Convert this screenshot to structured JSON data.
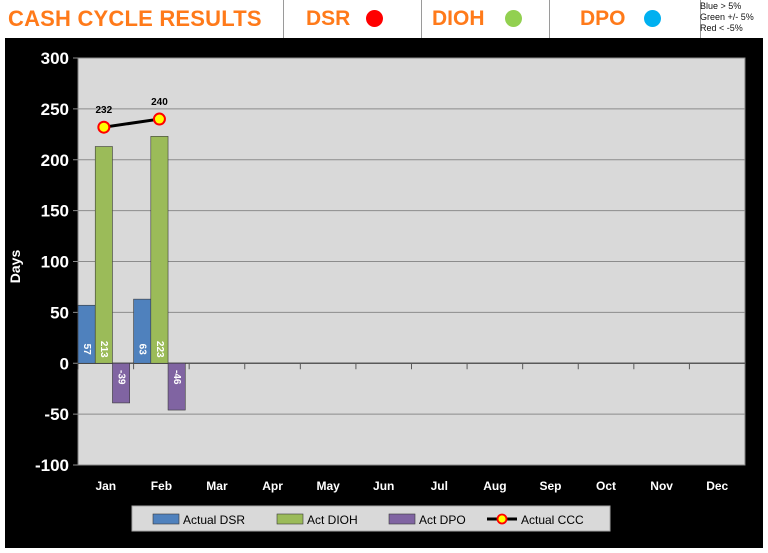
{
  "header": {
    "title": "CASH CYCLE RESULTS",
    "indicators": [
      {
        "label": "DSR",
        "color": "#ff0000"
      },
      {
        "label": "DIOH",
        "color": "#92d050"
      },
      {
        "label": "DPO",
        "color": "#00b0f0"
      }
    ],
    "notes": [
      "Blue > 5%",
      "Green +/- 5%",
      "Red < -5%"
    ]
  },
  "colors": {
    "dsr": "#4f81bd",
    "dioh": "#9bbb59",
    "dpo": "#8064a2",
    "ccc_line": "#000000",
    "ccc_marker_fill": "#ffff00",
    "ccc_marker_edge": "#ff0000",
    "plot_bg": "#d9d9d9"
  },
  "chart_data": {
    "type": "bar",
    "title": "",
    "xlabel": "",
    "ylabel": "Days",
    "ylim": [
      -100,
      300
    ],
    "yticks": [
      300,
      250,
      200,
      150,
      100,
      50,
      0,
      -50,
      -100
    ],
    "grid": true,
    "legend_position": "bottom",
    "categories": [
      "Jan",
      "Feb",
      "Mar",
      "Apr",
      "May",
      "Jun",
      "Jul",
      "Aug",
      "Sep",
      "Oct",
      "Nov",
      "Dec"
    ],
    "series": [
      {
        "name": "Actual DSR",
        "kind": "bar",
        "values": [
          57,
          63,
          null,
          null,
          null,
          null,
          null,
          null,
          null,
          null,
          null,
          null
        ]
      },
      {
        "name": "Act DIOH",
        "kind": "bar",
        "values": [
          213,
          223,
          null,
          null,
          null,
          null,
          null,
          null,
          null,
          null,
          null,
          null
        ]
      },
      {
        "name": "Act DPO",
        "kind": "bar",
        "values": [
          -39,
          -46,
          null,
          null,
          null,
          null,
          null,
          null,
          null,
          null,
          null,
          null
        ]
      },
      {
        "name": "Actual CCC",
        "kind": "line",
        "values": [
          232,
          240,
          null,
          null,
          null,
          null,
          null,
          null,
          null,
          null,
          null,
          null
        ]
      }
    ]
  }
}
